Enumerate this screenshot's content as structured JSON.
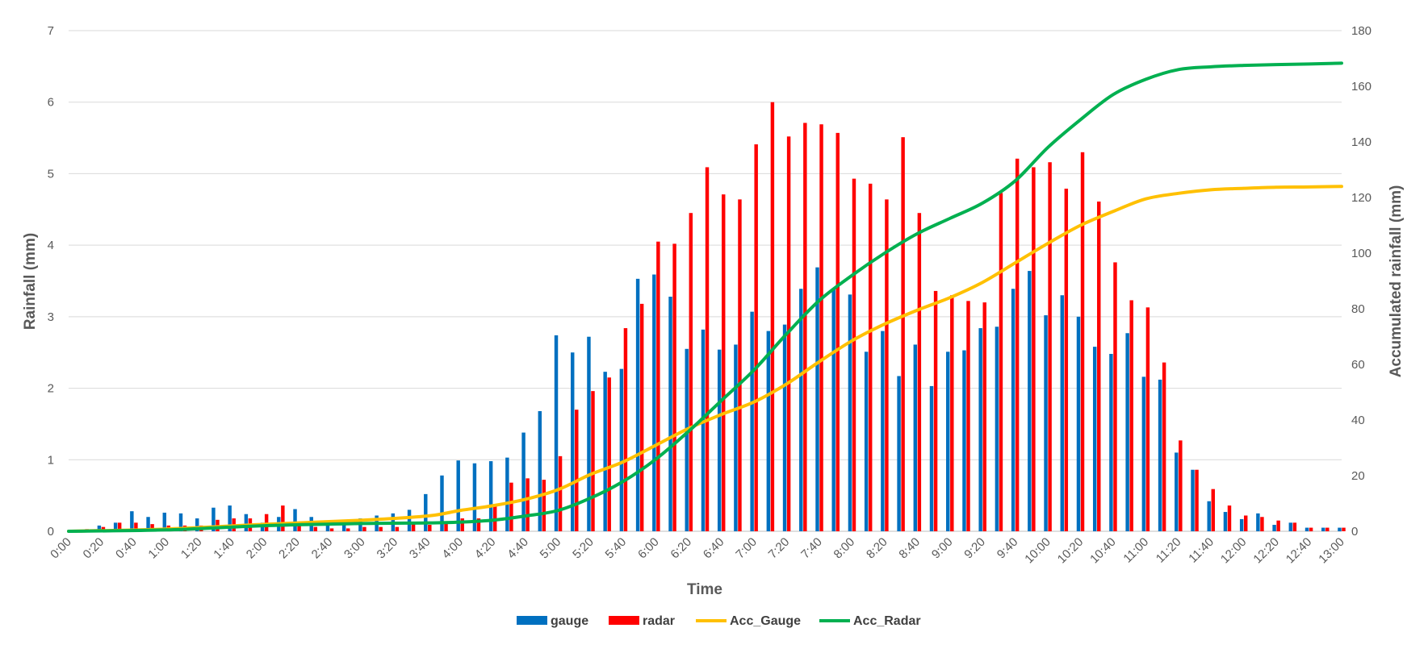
{
  "chart_data": {
    "type": "bar",
    "title": "",
    "xlabel": "Time",
    "ylabel": "Rainfall (mm)",
    "y2label": "Accumulated rainfall (mm)",
    "ylim": [
      0,
      7
    ],
    "y2lim": [
      0,
      180
    ],
    "yticks": [
      "0",
      "1",
      "2",
      "3",
      "4",
      "5",
      "6",
      "7"
    ],
    "y2ticks": [
      "0",
      "20",
      "40",
      "60",
      "80",
      "100",
      "120",
      "140",
      "160",
      "180"
    ],
    "xtick_labels": [
      "0:00",
      "0:20",
      "0:40",
      "1:00",
      "1:20",
      "1:40",
      "2:00",
      "2:20",
      "2:40",
      "3:00",
      "3:20",
      "3:40",
      "4:00",
      "4:20",
      "4:40",
      "5:00",
      "5:20",
      "5:40",
      "6:00",
      "6:20",
      "6:40",
      "7:00",
      "7:20",
      "7:40",
      "8:00",
      "8:20",
      "8:40",
      "9:00",
      "9:20",
      "9:40",
      "10:00",
      "10:20",
      "10:40",
      "11:00",
      "11:20",
      "11:40",
      "12:00",
      "12:20",
      "12:40",
      "13:00"
    ],
    "x_interval_minutes": 10,
    "grid": true,
    "legend_position": "bottom",
    "colors": {
      "gauge": "#0070C0",
      "radar": "#FF0000",
      "acc_gauge": "#FFC000",
      "acc_radar": "#00B050"
    },
    "series": [
      {
        "name": "gauge",
        "type": "bar",
        "axis": "left",
        "values": [
          0,
          0,
          0.08,
          0.12,
          0.28,
          0.2,
          0.26,
          0.25,
          0.18,
          0.33,
          0.36,
          0.24,
          0.12,
          0.2,
          0.31,
          0.2,
          0.12,
          0.1,
          0.18,
          0.22,
          0.25,
          0.3,
          0.52,
          0.78,
          0.99,
          0.95,
          0.98,
          1.03,
          1.38,
          1.68,
          2.74,
          2.5,
          2.72,
          2.23,
          2.27,
          3.53,
          3.59,
          3.28,
          2.55,
          2.82,
          2.54,
          2.61,
          3.07,
          2.8,
          2.89,
          3.39,
          3.69,
          3.39,
          3.31,
          2.51,
          2.8,
          2.17,
          2.61,
          2.03,
          2.51,
          2.53,
          2.84,
          2.86,
          3.39,
          3.64,
          3.02,
          3.3,
          3.0,
          2.58,
          2.48,
          2.77,
          2.16,
          2.12,
          1.1,
          0.86,
          0.42,
          0.27,
          0.17,
          0.25,
          0.09,
          0.12,
          0.05,
          0.05,
          0.05
        ]
      },
      {
        "name": "radar",
        "type": "bar",
        "axis": "left",
        "values": [
          0,
          0.03,
          0.06,
          0.12,
          0.12,
          0.1,
          0.08,
          0.08,
          0.08,
          0.16,
          0.18,
          0.18,
          0.24,
          0.36,
          0.1,
          0.06,
          0.04,
          0.04,
          0.06,
          0.06,
          0.06,
          0.1,
          0.09,
          0.14,
          0.18,
          0.18,
          0.36,
          0.68,
          0.74,
          0.72,
          1.05,
          1.7,
          1.96,
          2.15,
          2.84,
          3.18,
          4.05,
          4.02,
          4.45,
          5.09,
          4.71,
          4.64,
          5.41,
          6.0,
          5.52,
          5.71,
          5.69,
          5.57,
          4.93,
          4.86,
          4.64,
          5.51,
          4.45,
          3.36,
          3.3,
          3.22,
          3.2,
          4.73,
          5.21,
          5.09,
          5.16,
          4.79,
          5.3,
          4.61,
          3.76,
          3.23,
          3.13,
          2.36,
          1.27,
          0.86,
          0.59,
          0.36,
          0.22,
          0.2,
          0.15,
          0.12,
          0.05,
          0.05,
          0.05
        ]
      },
      {
        "name": "Acc_Gauge",
        "type": "line",
        "axis": "right",
        "x": [
          "0:00",
          "1:00",
          "2:00",
          "3:00",
          "3:40",
          "4:00",
          "4:20",
          "4:40",
          "5:00",
          "5:20",
          "5:40",
          "6:00",
          "6:20",
          "6:40",
          "7:00",
          "7:20",
          "7:40",
          "8:00",
          "8:20",
          "8:40",
          "9:00",
          "9:20",
          "9:40",
          "10:00",
          "10:20",
          "10:40",
          "11:00",
          "11:20",
          "11:40",
          "12:00",
          "12:20",
          "12:40",
          "13:00"
        ],
        "values": [
          0,
          0.8,
          2.5,
          4.0,
          5.5,
          7.5,
          9.2,
          11.5,
          15.0,
          20.5,
          25.0,
          31.0,
          37.0,
          42.0,
          46.5,
          53.0,
          61.0,
          68.5,
          74.5,
          79.5,
          84.0,
          89.5,
          96.5,
          103.5,
          110.0,
          115.0,
          119.5,
          121.5,
          122.8,
          123.3,
          123.7,
          123.8,
          124.0
        ]
      },
      {
        "name": "Acc_Radar",
        "type": "line",
        "axis": "right",
        "x": [
          "0:00",
          "1:00",
          "2:00",
          "3:00",
          "3:40",
          "4:00",
          "4:20",
          "4:40",
          "5:00",
          "5:20",
          "5:40",
          "6:00",
          "6:20",
          "6:40",
          "7:00",
          "7:20",
          "7:40",
          "8:00",
          "8:20",
          "8:40",
          "9:00",
          "9:20",
          "9:40",
          "10:00",
          "10:20",
          "10:40",
          "11:00",
          "11:20",
          "11:40",
          "12:00",
          "12:20",
          "12:40",
          "13:00"
        ],
        "values": [
          0,
          0.5,
          2.0,
          2.8,
          3.0,
          3.3,
          4.0,
          5.5,
          7.5,
          12.0,
          18.0,
          26.0,
          36.0,
          47.0,
          58.0,
          71.0,
          83.0,
          92.0,
          100.0,
          107.0,
          112.5,
          118.0,
          126.0,
          138.0,
          148.0,
          157.0,
          162.5,
          166.0,
          167.0,
          167.5,
          167.8,
          168.0,
          168.3
        ]
      }
    ]
  }
}
